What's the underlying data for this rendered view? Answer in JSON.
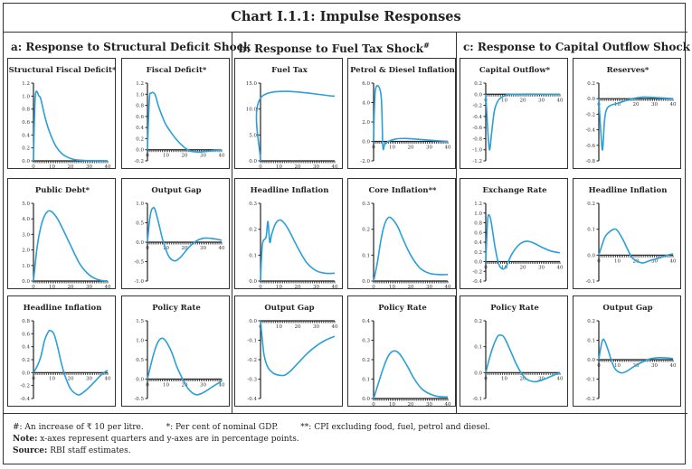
{
  "title": "Chart I.1.1: Impulse Responses",
  "sections": [
    {
      "label": "a: Response to Structural Deficit Shock",
      "sup": ""
    },
    {
      "label": "b: Response to Fuel Tax Shock",
      "sup": "#"
    },
    {
      "label": "c: Response to Capital Outflow Shock",
      "sup": ""
    }
  ],
  "footnotes": {
    "hash": "#: An increase of ₹ 10 per litre.",
    "star": "*: Per cent of nominal GDP.",
    "dstar": "**: CPI excluding food, fuel, petrol and diesel.",
    "note_label": "Note:",
    "note": " x-axes represent quarters and y-axes are in percentage points.",
    "source_label": "Source:",
    "source": " RBI staff estimates."
  },
  "colors": {
    "line": "#2a9fd8",
    "axis": "#222222"
  },
  "chart_data": [
    {
      "type": "line",
      "title": "Structural Fiscal Deficit*",
      "xlim": [
        0,
        40
      ],
      "xticks": [
        "0",
        "10",
        "20",
        "30",
        "40"
      ],
      "ylim": [
        0,
        1.2
      ],
      "yticks": [
        "0.0",
        "0.2",
        "0.4",
        "0.6",
        "0.8",
        "1.0",
        "1.2"
      ],
      "x": [
        0,
        1,
        3,
        4,
        6,
        8,
        10,
        12,
        15,
        18,
        22,
        28,
        40
      ],
      "y": [
        0,
        1,
        1,
        0.95,
        0.7,
        0.5,
        0.35,
        0.23,
        0.12,
        0.06,
        0.02,
        0.005,
        0
      ]
    },
    {
      "type": "line",
      "title": "Fiscal Deficit*",
      "xlim": [
        0,
        40
      ],
      "xticks": [
        "0",
        "10",
        "20",
        "30",
        "40"
      ],
      "ylim": [
        -0.2,
        1.2
      ],
      "yticks": [
        "-0.2",
        "0.0",
        "0.2",
        "0.4",
        "0.6",
        "0.8",
        "1.0",
        "1.2"
      ],
      "x": [
        0,
        1,
        2,
        4,
        6,
        8,
        10,
        13,
        16,
        20,
        23,
        27,
        32,
        36,
        40
      ],
      "y": [
        0,
        0.9,
        1.02,
        1.0,
        0.78,
        0.6,
        0.45,
        0.3,
        0.17,
        0.04,
        -0.02,
        -0.04,
        -0.03,
        -0.01,
        0
      ]
    },
    {
      "type": "line",
      "title": "Public Debt*",
      "xlim": [
        0,
        40
      ],
      "xticks": [
        "0",
        "10",
        "20",
        "30",
        "40"
      ],
      "ylim": [
        0,
        5
      ],
      "yticks": [
        "0.0",
        "1.0",
        "2.0",
        "3.0",
        "4.0",
        "5.0"
      ],
      "x": [
        0,
        2,
        4,
        6,
        8,
        10,
        13,
        16,
        20,
        25,
        30,
        35,
        40
      ],
      "y": [
        0,
        2.2,
        3.5,
        4.2,
        4.5,
        4.45,
        4.0,
        3.3,
        2.3,
        1.1,
        0.4,
        0.08,
        0
      ]
    },
    {
      "type": "line",
      "title": "Output Gap",
      "xlim": [
        0,
        40
      ],
      "xticks": [
        "0",
        "10",
        "20",
        "30",
        "40"
      ],
      "ylim": [
        -1,
        1
      ],
      "yticks": [
        "-1.0",
        "-0.5",
        "0.0",
        "0.5",
        "1.0"
      ],
      "x": [
        0,
        1,
        2,
        3,
        4,
        6,
        8,
        10,
        12,
        15,
        18,
        22,
        26,
        30,
        34,
        38,
        40
      ],
      "y": [
        0,
        0.5,
        0.8,
        0.88,
        0.85,
        0.5,
        0.1,
        -0.2,
        -0.4,
        -0.48,
        -0.38,
        -0.15,
        0.02,
        0.1,
        0.1,
        0.07,
        0.05
      ]
    },
    {
      "type": "line",
      "title": "Headline Inflation",
      "xlim": [
        0,
        40
      ],
      "xticks": [
        "0",
        "10",
        "20",
        "30",
        "40"
      ],
      "ylim": [
        -0.4,
        0.8
      ],
      "yticks": [
        "-0.4",
        "-0.2",
        "0.0",
        "0.2",
        "0.4",
        "0.6",
        "0.8"
      ],
      "x": [
        0,
        2,
        4,
        6,
        8,
        9,
        11,
        13,
        15,
        17,
        20,
        23,
        25,
        28,
        32,
        36,
        39,
        40
      ],
      "y": [
        0,
        0.1,
        0.25,
        0.5,
        0.63,
        0.65,
        0.6,
        0.4,
        0.15,
        -0.05,
        -0.25,
        -0.33,
        -0.34,
        -0.28,
        -0.17,
        -0.05,
        0.02,
        0.03
      ]
    },
    {
      "type": "line",
      "title": "Policy Rate",
      "xlim": [
        0,
        40
      ],
      "xticks": [
        "0",
        "10",
        "20",
        "30",
        "40"
      ],
      "ylim": [
        -0.5,
        1.5
      ],
      "yticks": [
        "-0.5",
        "0.0",
        "0.5",
        "1.0",
        "1.5"
      ],
      "x": [
        0,
        2,
        4,
        6,
        8,
        10,
        13,
        16,
        19,
        22,
        26,
        30,
        35,
        40
      ],
      "y": [
        0,
        0.4,
        0.75,
        0.98,
        1.05,
        0.97,
        0.7,
        0.3,
        0,
        -0.25,
        -0.4,
        -0.35,
        -0.2,
        -0.05
      ]
    },
    {
      "type": "line",
      "title": "Fuel Tax",
      "xlim": [
        0,
        40
      ],
      "xticks": [
        "0",
        "10",
        "20",
        "30",
        "40"
      ],
      "ylim": [
        0,
        15
      ],
      "yticks": [
        "0.0",
        "5.0",
        "10.0",
        "15.0"
      ],
      "x": [
        0,
        1,
        40
      ],
      "y": [
        0,
        12.5,
        12.5
      ]
    },
    {
      "type": "line",
      "title": "Petrol & Diesel Inflation",
      "xlim": [
        0,
        40
      ],
      "xticks": [
        "0",
        "10",
        "20",
        "30",
        "40"
      ],
      "ylim": [
        -2,
        6
      ],
      "yticks": [
        "-2.0",
        "0.0",
        "2.0",
        "4.0",
        "6.0"
      ],
      "x": [
        0,
        1,
        4,
        5,
        6,
        8,
        12,
        18,
        25,
        32,
        40
      ],
      "y": [
        0,
        5.3,
        4.8,
        -0.5,
        -0.3,
        0,
        0.25,
        0.3,
        0.2,
        0.1,
        0
      ]
    },
    {
      "type": "line",
      "title": "Headline Inflation",
      "xlim": [
        0,
        40
      ],
      "xticks": [
        "0",
        "10",
        "20",
        "30",
        "40"
      ],
      "ylim": [
        0,
        0.3
      ],
      "yticks": [
        "0.0",
        "0.1",
        "0.2",
        "0.3"
      ],
      "x": [
        0,
        1,
        3,
        4,
        5,
        6,
        8,
        10,
        12,
        15,
        20,
        25,
        30,
        35,
        40
      ],
      "y": [
        0,
        0.14,
        0.17,
        0.23,
        0.15,
        0.18,
        0.22,
        0.235,
        0.23,
        0.2,
        0.13,
        0.07,
        0.04,
        0.03,
        0.03
      ]
    },
    {
      "type": "line",
      "title": "Core Inflation**",
      "xlim": [
        0,
        40
      ],
      "xticks": [
        "0",
        "10",
        "20",
        "30",
        "40"
      ],
      "ylim": [
        0,
        0.3
      ],
      "yticks": [
        "0.0",
        "0.1",
        "0.2",
        "0.3"
      ],
      "x": [
        0,
        2,
        4,
        6,
        8,
        10,
        13,
        16,
        20,
        25,
        30,
        35,
        40
      ],
      "y": [
        0,
        0.07,
        0.16,
        0.22,
        0.245,
        0.24,
        0.21,
        0.16,
        0.1,
        0.05,
        0.03,
        0.025,
        0.025
      ]
    },
    {
      "type": "line",
      "title": "Output Gap",
      "xlim": [
        0,
        40
      ],
      "xticks": [
        "0",
        "10",
        "20",
        "30",
        "40"
      ],
      "ylim": [
        -0.4,
        0
      ],
      "yticks": [
        "-0.4",
        "-0.3",
        "-0.2",
        "-0.1",
        "0.0"
      ],
      "x": [
        0,
        1,
        2,
        4,
        7,
        10,
        13,
        16,
        20,
        25,
        30,
        35,
        40
      ],
      "y": [
        0,
        -0.1,
        -0.18,
        -0.24,
        -0.27,
        -0.28,
        -0.28,
        -0.26,
        -0.22,
        -0.17,
        -0.13,
        -0.1,
        -0.08
      ]
    },
    {
      "type": "line",
      "title": "Policy Rate",
      "xlim": [
        0,
        40
      ],
      "xticks": [
        "0",
        "10",
        "20",
        "30",
        "40"
      ],
      "ylim": [
        0,
        0.4
      ],
      "yticks": [
        "0.0",
        "0.1",
        "0.2",
        "0.3",
        "0.4"
      ],
      "x": [
        0,
        2,
        5,
        8,
        11,
        14,
        18,
        22,
        26,
        30,
        35,
        40
      ],
      "y": [
        0,
        0.06,
        0.15,
        0.22,
        0.245,
        0.23,
        0.17,
        0.1,
        0.05,
        0.025,
        0.01,
        0.008
      ]
    },
    {
      "type": "line",
      "title": "Capital Outflow*",
      "xlim": [
        0,
        40
      ],
      "xticks": [
        "0",
        "10",
        "20",
        "30",
        "40"
      ],
      "ylim": [
        -1.2,
        0.2
      ],
      "yticks": [
        "-1.2",
        "-1.0",
        "-0.8",
        "-0.6",
        "-0.4",
        "-0.2",
        "0.0",
        "0.2"
      ],
      "x": [
        0,
        1,
        2,
        3,
        4,
        5,
        7,
        10,
        15,
        40
      ],
      "y": [
        0,
        -0.6,
        -1.0,
        -0.75,
        -0.45,
        -0.25,
        -0.1,
        -0.03,
        0,
        0
      ]
    },
    {
      "type": "line",
      "title": "Reserves*",
      "xlim": [
        0,
        40
      ],
      "xticks": [
        "0",
        "10",
        "20",
        "30",
        "40"
      ],
      "ylim": [
        -0.8,
        0.2
      ],
      "yticks": [
        "-0.8",
        "-0.6",
        "-0.4",
        "-0.2",
        "0.0",
        "0.2"
      ],
      "x": [
        0,
        1,
        2,
        3,
        4,
        6,
        10,
        14,
        18,
        24,
        30,
        40
      ],
      "y": [
        0,
        -0.4,
        -0.66,
        -0.3,
        -0.15,
        -0.09,
        -0.06,
        -0.03,
        0,
        0.02,
        0.015,
        0
      ]
    },
    {
      "type": "line",
      "title": "Exchange Rate",
      "xlim": [
        0,
        40
      ],
      "xticks": [
        "0",
        "10",
        "20",
        "30",
        "40"
      ],
      "ylim": [
        -0.4,
        1.2
      ],
      "yticks": [
        "-0.4",
        "-0.2",
        "0.0",
        "0.2",
        "0.4",
        "0.6",
        "0.8",
        "1.0",
        "1.2"
      ],
      "x": [
        0,
        1,
        2,
        3,
        5,
        7,
        9,
        11,
        14,
        18,
        22,
        26,
        30,
        35,
        40
      ],
      "y": [
        0,
        0.85,
        0.95,
        0.8,
        0.3,
        -0.05,
        -0.15,
        -0.1,
        0.15,
        0.35,
        0.42,
        0.38,
        0.3,
        0.22,
        0.18
      ]
    },
    {
      "type": "line",
      "title": "Headline Inflation",
      "xlim": [
        0,
        40
      ],
      "xticks": [
        "0",
        "10",
        "20",
        "30",
        "40"
      ],
      "ylim": [
        -0.1,
        0.2
      ],
      "yticks": [
        "-0.1",
        "0.0",
        "0.1",
        "0.2"
      ],
      "x": [
        0,
        3,
        5,
        8,
        10,
        13,
        16,
        18,
        21,
        24,
        28,
        33,
        37,
        40
      ],
      "y": [
        0,
        0.065,
        0.085,
        0.1,
        0.095,
        0.06,
        0.015,
        -0.01,
        -0.025,
        -0.03,
        -0.02,
        -0.01,
        0,
        0.005
      ]
    },
    {
      "type": "line",
      "title": "Policy Rate",
      "xlim": [
        0,
        40
      ],
      "xticks": [
        "0",
        "10",
        "20",
        "30",
        "40"
      ],
      "ylim": [
        -0.1,
        0.2
      ],
      "yticks": [
        "-0.1",
        "0.0",
        "0.1",
        "0.2"
      ],
      "x": [
        0,
        3,
        6,
        8,
        10,
        13,
        16,
        19,
        22,
        26,
        30,
        35,
        40
      ],
      "y": [
        0,
        0.08,
        0.135,
        0.145,
        0.135,
        0.09,
        0.04,
        0,
        -0.025,
        -0.035,
        -0.03,
        -0.015,
        0
      ]
    },
    {
      "type": "line",
      "title": "Output Gap",
      "xlim": [
        0,
        40
      ],
      "xticks": [
        "0",
        "10",
        "20",
        "30",
        "40"
      ],
      "ylim": [
        -0.2,
        0.2
      ],
      "yticks": [
        "-0.2",
        "-0.1",
        "0.0",
        "0.1",
        "0.2"
      ],
      "x": [
        0,
        1,
        2,
        3,
        5,
        7,
        9,
        12,
        15,
        19,
        24,
        28,
        33,
        38,
        40
      ],
      "y": [
        0,
        0.06,
        0.1,
        0.1,
        0.05,
        -0.01,
        -0.05,
        -0.068,
        -0.06,
        -0.035,
        -0.01,
        0.005,
        0.01,
        0.008,
        0.005
      ]
    }
  ]
}
